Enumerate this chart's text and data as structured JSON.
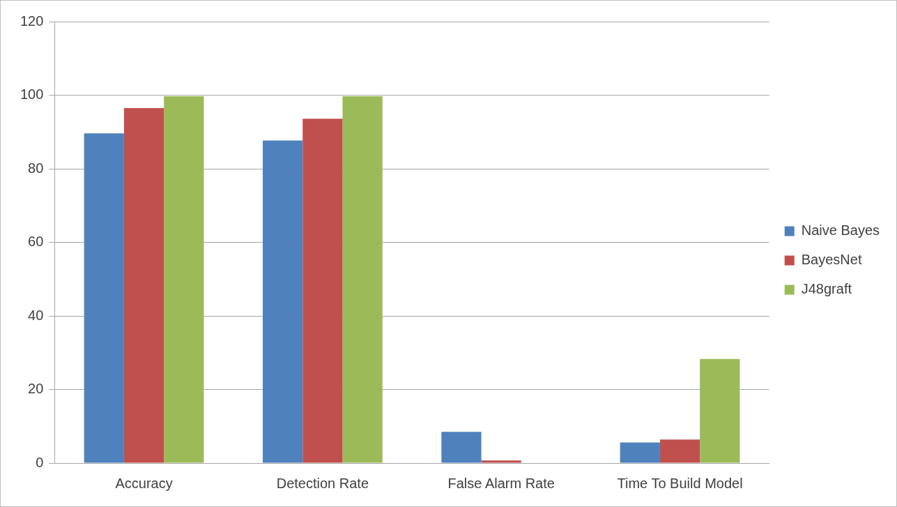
{
  "chart_data": {
    "type": "bar",
    "categories": [
      "Accuracy",
      "Detection Rate",
      "False Alarm Rate",
      "Time To Build Model"
    ],
    "series": [
      {
        "name": "Naive Bayes",
        "color": "#4f81bd",
        "values": [
          89.6,
          87.7,
          8.5,
          5.6
        ]
      },
      {
        "name": "BayesNet",
        "color": "#c0504d",
        "values": [
          96.5,
          93.6,
          0.7,
          6.4
        ]
      },
      {
        "name": "J48graft",
        "color": "#9bbb59",
        "values": [
          99.7,
          99.7,
          0,
          28.3
        ]
      }
    ],
    "ylim": [
      0,
      120
    ],
    "yticks": [
      0,
      20,
      40,
      60,
      80,
      100,
      120
    ],
    "grid": "y",
    "legend": "right"
  }
}
